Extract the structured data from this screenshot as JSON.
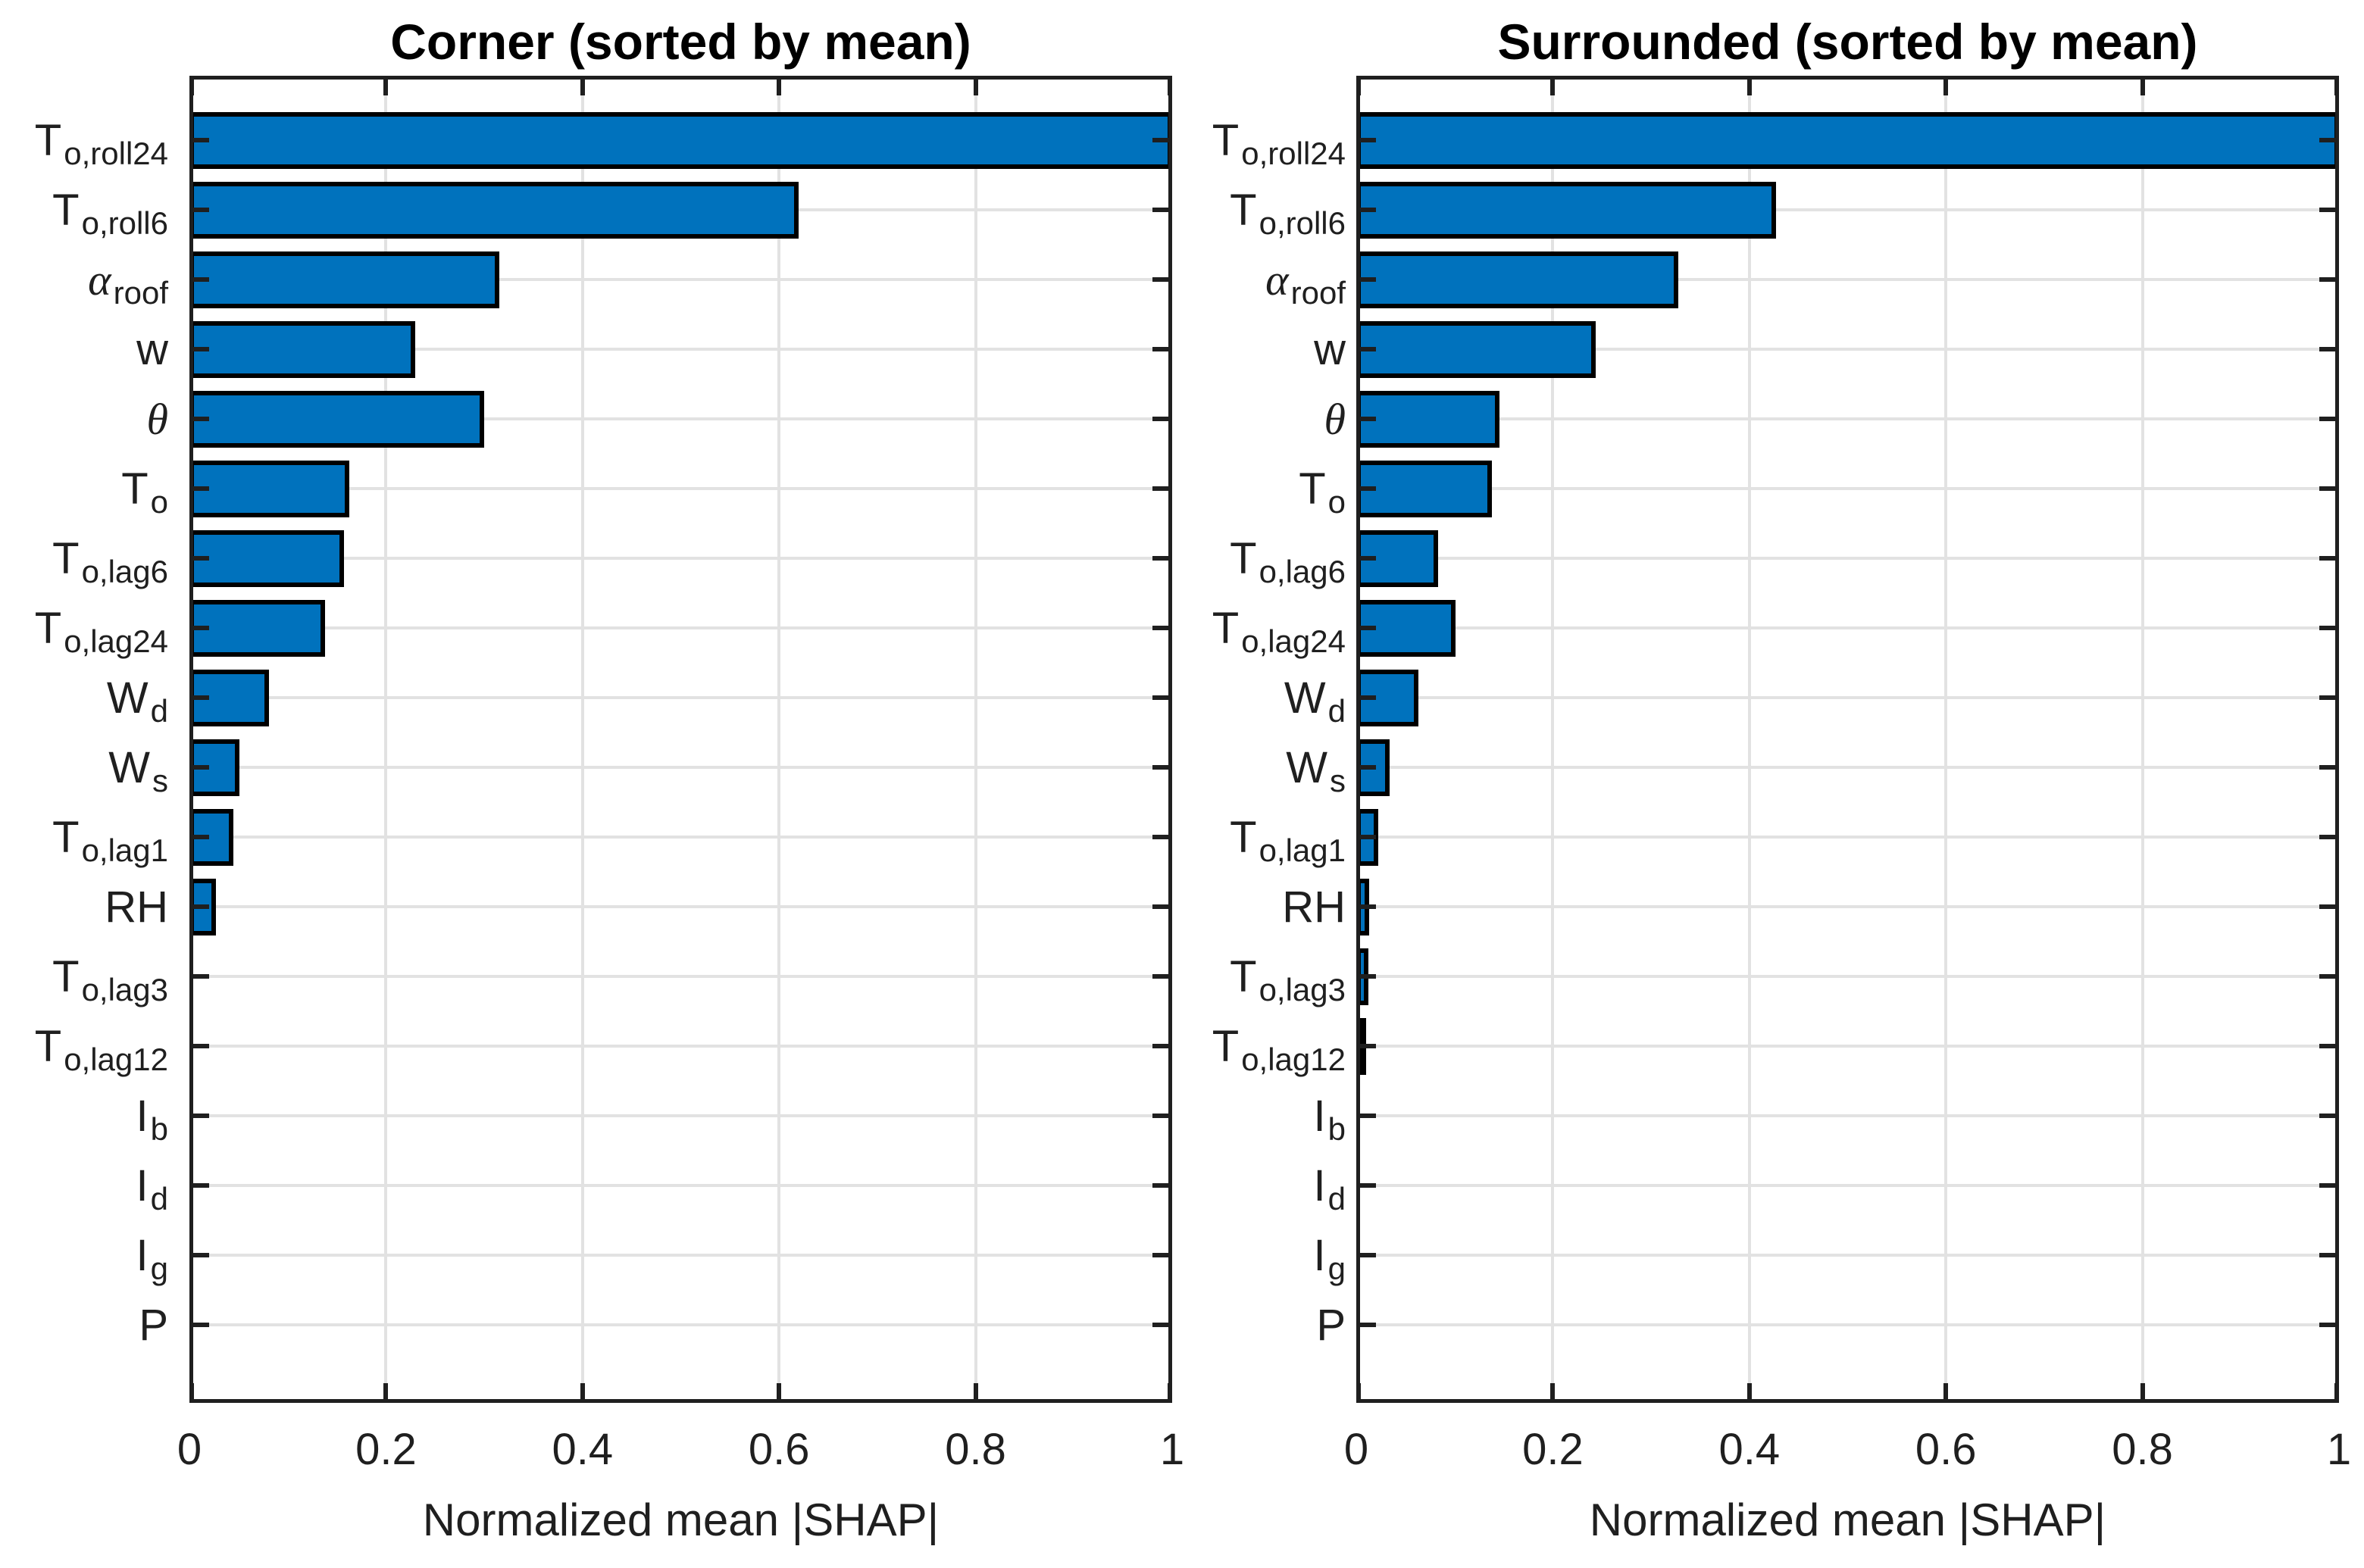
{
  "figure": {
    "background": "#ffffff",
    "axis_color": "#1f1f1f",
    "grid_color": "#e2e2e2"
  },
  "chart_data": {
    "type": "bar",
    "orientation": "horizontal",
    "xlabel": "Normalized mean |SHAP|",
    "xlim": [
      0,
      1
    ],
    "xticks": [
      0,
      0.2,
      0.4,
      0.6,
      0.8,
      1
    ],
    "xtick_labels": [
      "0",
      "0.2",
      "0.4",
      "0.6",
      "0.8",
      "1"
    ],
    "grid": true,
    "bar_color": "#0072BD",
    "bar_edge_color": "#000000",
    "categories": [
      {
        "label": "T_{o,roll24}",
        "main": "T",
        "sub": "o,roll24",
        "italic": false
      },
      {
        "label": "T_{o,roll6}",
        "main": "T",
        "sub": "o,roll6",
        "italic": false
      },
      {
        "label": "alpha_{roof}",
        "main": "α",
        "sub": "roof",
        "italic": true
      },
      {
        "label": "w",
        "main": "w",
        "sub": "",
        "italic": false
      },
      {
        "label": "theta",
        "main": "θ",
        "sub": "",
        "italic": true
      },
      {
        "label": "T_{o}",
        "main": "T",
        "sub": "o",
        "italic": false
      },
      {
        "label": "T_{o,lag6}",
        "main": "T",
        "sub": "o,lag6",
        "italic": false
      },
      {
        "label": "T_{o,lag24}",
        "main": "T",
        "sub": "o,lag24",
        "italic": false
      },
      {
        "label": "W_{d}",
        "main": "W",
        "sub": "d",
        "italic": false
      },
      {
        "label": "W_{s}",
        "main": "W",
        "sub": "s",
        "italic": false
      },
      {
        "label": "T_{o,lag1}",
        "main": "T",
        "sub": "o,lag1",
        "italic": false
      },
      {
        "label": "RH",
        "main": "RH",
        "sub": "",
        "italic": false
      },
      {
        "label": "T_{o,lag3}",
        "main": "T",
        "sub": "o,lag3",
        "italic": false
      },
      {
        "label": "T_{o,lag12}",
        "main": "T",
        "sub": "o,lag12",
        "italic": false
      },
      {
        "label": "I_{b}",
        "main": "I",
        "sub": "b",
        "italic": false
      },
      {
        "label": "I_{d}",
        "main": "I",
        "sub": "d",
        "italic": false
      },
      {
        "label": "I_{g}",
        "main": "I",
        "sub": "g",
        "italic": false
      },
      {
        "label": "P",
        "main": "P",
        "sub": "",
        "italic": false
      }
    ],
    "series": [
      {
        "name": "Corner (sorted by mean)",
        "values": [
          1.0,
          0.62,
          0.315,
          0.23,
          0.3,
          0.163,
          0.157,
          0.138,
          0.081,
          0.051,
          0.045,
          0.027,
          0.004,
          0.003,
          0.002,
          0.002,
          0.001,
          0.001
        ]
      },
      {
        "name": "Surrounded (sorted by mean)",
        "values": [
          1.0,
          0.427,
          0.328,
          0.244,
          0.146,
          0.138,
          0.083,
          0.101,
          0.063,
          0.034,
          0.022,
          0.013,
          0.012,
          0.01,
          0.003,
          0.002,
          0.002,
          0.001
        ]
      }
    ]
  }
}
